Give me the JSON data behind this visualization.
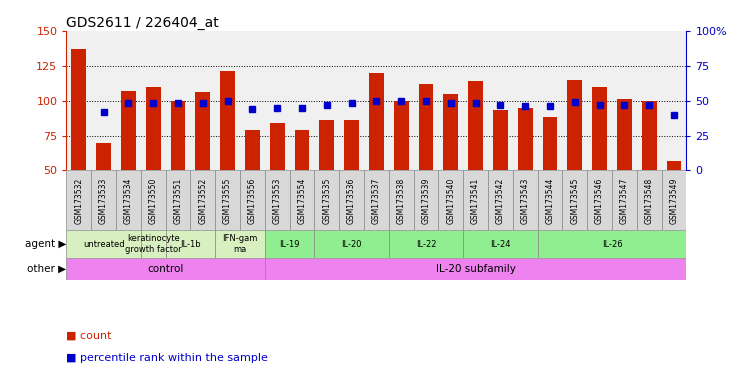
{
  "title": "GDS2611 / 226404_at",
  "samples": [
    "GSM173532",
    "GSM173533",
    "GSM173534",
    "GSM173550",
    "GSM173551",
    "GSM173552",
    "GSM173555",
    "GSM173556",
    "GSM173553",
    "GSM173554",
    "GSM173535",
    "GSM173536",
    "GSM173537",
    "GSM173538",
    "GSM173539",
    "GSM173540",
    "GSM173541",
    "GSM173542",
    "GSM173543",
    "GSM173544",
    "GSM173545",
    "GSM173546",
    "GSM173547",
    "GSM173548",
    "GSM173549"
  ],
  "counts": [
    137,
    70,
    107,
    110,
    100,
    106,
    121,
    79,
    84,
    79,
    86,
    86,
    120,
    100,
    112,
    105,
    114,
    93,
    95,
    88,
    115,
    110,
    101,
    100,
    57
  ],
  "percentiles": [
    null,
    42,
    48,
    48,
    48,
    48,
    50,
    44,
    45,
    45,
    47,
    48,
    50,
    50,
    50,
    48,
    48,
    47,
    46,
    46,
    49,
    47,
    47,
    47,
    40
  ],
  "ylim_left": [
    50,
    150
  ],
  "ylim_right": [
    0,
    100
  ],
  "yticks_left": [
    50,
    75,
    100,
    125,
    150
  ],
  "yticks_right": [
    0,
    25,
    50,
    75,
    100
  ],
  "bar_color": "#cc2200",
  "dot_color": "#0000cc",
  "bg_color": "#f0f0f0",
  "dotted_lines": [
    75,
    100,
    125
  ],
  "agent_map": [
    [
      0,
      3,
      "untreated",
      "#d8f0c0"
    ],
    [
      3,
      4,
      "keratinocyte\ngrowth factor",
      "#d8f0c0"
    ],
    [
      4,
      6,
      "IL-1b",
      "#d8f0c0"
    ],
    [
      6,
      8,
      "IFN-gam\nma",
      "#d8f0c0"
    ],
    [
      8,
      10,
      "IL-19",
      "#90ee90"
    ],
    [
      10,
      13,
      "IL-20",
      "#90ee90"
    ],
    [
      13,
      16,
      "IL-22",
      "#90ee90"
    ],
    [
      16,
      19,
      "IL-24",
      "#90ee90"
    ],
    [
      19,
      25,
      "IL-26",
      "#90ee90"
    ]
  ],
  "other_map": [
    [
      0,
      8,
      "control",
      "#ee82ee"
    ],
    [
      8,
      25,
      "IL-20 subfamily",
      "#ee82ee"
    ]
  ],
  "legend_items": [
    [
      "count",
      "#cc2200"
    ],
    [
      "percentile rank within the sample",
      "#0000cc"
    ]
  ]
}
